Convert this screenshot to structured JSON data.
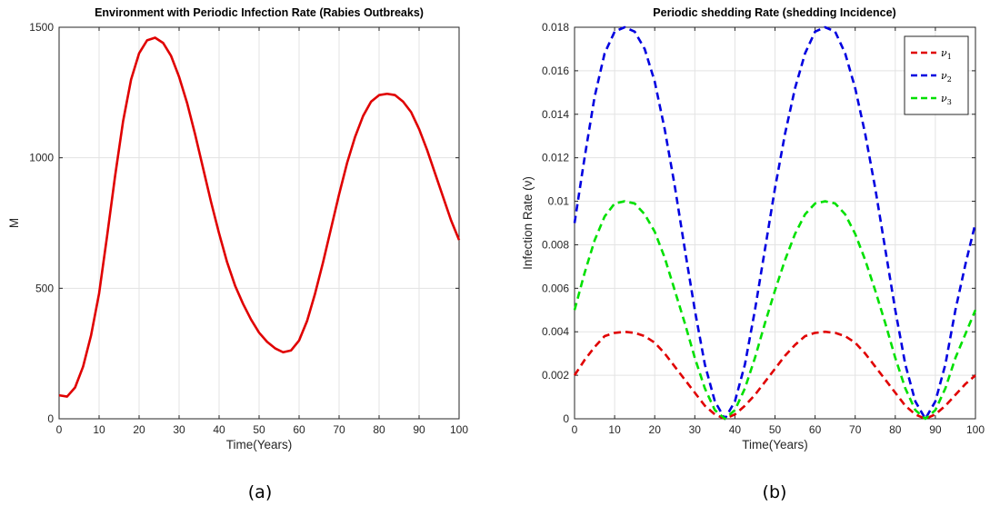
{
  "chart_data": [
    {
      "type": "line",
      "title": "Environment  with Periodic Infection Rate (Rabies Outbreaks)",
      "xlabel": "Time(Years)",
      "ylabel": "M",
      "caption": "(a)",
      "xlim": [
        0,
        100
      ],
      "ylim": [
        0,
        1500
      ],
      "xticks": [
        "0",
        "10",
        "20",
        "30",
        "40",
        "50",
        "60",
        "70",
        "80",
        "90",
        "100"
      ],
      "yticks": [
        "0",
        "500",
        "1000",
        "1500"
      ],
      "grid": true,
      "series": [
        {
          "color": "#e00000",
          "style": "solid",
          "x": [
            0,
            2,
            4,
            6,
            8,
            10,
            12,
            14,
            16,
            18,
            20,
            22,
            24,
            26,
            28,
            30,
            32,
            34,
            36,
            38,
            40,
            42,
            44,
            46,
            48,
            50,
            52,
            54,
            56,
            58,
            60,
            62,
            64,
            66,
            68,
            70,
            72,
            74,
            76,
            78,
            80,
            82,
            84,
            86,
            88,
            90,
            92,
            94,
            96,
            98,
            100
          ],
          "values": [
            90,
            85,
            120,
            200,
            320,
            480,
            700,
            930,
            1140,
            1300,
            1400,
            1450,
            1460,
            1440,
            1390,
            1310,
            1210,
            1090,
            960,
            830,
            710,
            600,
            510,
            440,
            380,
            330,
            295,
            270,
            255,
            262,
            300,
            375,
            480,
            600,
            730,
            860,
            980,
            1080,
            1160,
            1215,
            1240,
            1245,
            1240,
            1215,
            1175,
            1110,
            1030,
            940,
            850,
            760,
            685
          ]
        }
      ]
    },
    {
      "type": "line",
      "title": "Periodic shedding Rate (shedding Incidence)",
      "xlabel": "Time(Years)",
      "ylabel": "Infection Rate (ν)",
      "caption": "(b)",
      "xlim": [
        0,
        100
      ],
      "ylim": [
        0,
        0.018
      ],
      "xticks": [
        "0",
        "10",
        "20",
        "30",
        "40",
        "50",
        "60",
        "70",
        "80",
        "90",
        "100"
      ],
      "yticks": [
        "0",
        "0.002",
        "0.004",
        "0.006",
        "0.008",
        "0.01",
        "0.012",
        "0.014",
        "0.016",
        "0.018"
      ],
      "grid": true,
      "legend_position": "top-right",
      "series": [
        {
          "name": "ν1",
          "color": "#e00000",
          "style": "dashed",
          "x": [
            0,
            2.5,
            5,
            7.5,
            10,
            12.5,
            15,
            17.5,
            20,
            22.5,
            25,
            27.5,
            30,
            32.5,
            35,
            37.5,
            40,
            42.5,
            45,
            47.5,
            50,
            52.5,
            55,
            57.5,
            60,
            62.5,
            65,
            67.5,
            70,
            72.5,
            75,
            77.5,
            80,
            82.5,
            85,
            87.5,
            90,
            92.5,
            95,
            97.5,
            100
          ],
          "values": [
            0.002,
            0.0027,
            0.0033,
            0.0038,
            0.00395,
            0.004,
            0.00395,
            0.0038,
            0.0035,
            0.003,
            0.0024,
            0.0018,
            0.0012,
            0.0006,
            0.0002,
            0.0,
            0.0002,
            0.0006,
            0.0011,
            0.0017,
            0.0023,
            0.0029,
            0.0034,
            0.0038,
            0.00395,
            0.004,
            0.00395,
            0.0038,
            0.0035,
            0.003,
            0.0024,
            0.0018,
            0.0012,
            0.0006,
            0.0002,
            0.0,
            0.0002,
            0.0006,
            0.0011,
            0.0016,
            0.002
          ]
        },
        {
          "name": "ν2",
          "color": "#0000e0",
          "style": "dashed",
          "x": [
            0,
            2.5,
            5,
            7.5,
            10,
            12.5,
            15,
            17.5,
            20,
            22.5,
            25,
            27.5,
            30,
            32.5,
            35,
            37.5,
            40,
            42.5,
            45,
            47.5,
            50,
            52.5,
            55,
            57.5,
            60,
            62.5,
            65,
            67.5,
            70,
            72.5,
            75,
            77.5,
            80,
            82.5,
            85,
            87.5,
            90,
            92.5,
            95,
            97.5,
            100
          ],
          "values": [
            0.009,
            0.012,
            0.0148,
            0.0168,
            0.0178,
            0.018,
            0.0178,
            0.017,
            0.0155,
            0.0133,
            0.0107,
            0.0078,
            0.005,
            0.0025,
            0.0008,
            0.0,
            0.0008,
            0.0025,
            0.005,
            0.0078,
            0.0106,
            0.0131,
            0.0152,
            0.0168,
            0.0178,
            0.018,
            0.0178,
            0.0168,
            0.0152,
            0.0131,
            0.0106,
            0.0078,
            0.005,
            0.0025,
            0.0008,
            0.0,
            0.0008,
            0.0025,
            0.005,
            0.0071,
            0.009
          ]
        },
        {
          "name": "ν3",
          "color": "#00e000",
          "style": "dashed",
          "x": [
            0,
            2.5,
            5,
            7.5,
            10,
            12.5,
            15,
            17.5,
            20,
            22.5,
            25,
            27.5,
            30,
            32.5,
            35,
            37.5,
            40,
            42.5,
            45,
            47.5,
            50,
            52.5,
            55,
            57.5,
            60,
            62.5,
            65,
            67.5,
            70,
            72.5,
            75,
            77.5,
            80,
            82.5,
            85,
            87.5,
            90,
            92.5,
            95,
            97.5,
            100
          ],
          "values": [
            0.005,
            0.0067,
            0.0082,
            0.0093,
            0.0099,
            0.01,
            0.0099,
            0.0094,
            0.0086,
            0.0074,
            0.0059,
            0.0044,
            0.0028,
            0.0014,
            0.0004,
            0.0,
            0.0004,
            0.0014,
            0.0028,
            0.0044,
            0.0059,
            0.0073,
            0.0085,
            0.0094,
            0.0099,
            0.01,
            0.0099,
            0.0094,
            0.0085,
            0.0073,
            0.0059,
            0.0044,
            0.0028,
            0.0014,
            0.0004,
            0.0,
            0.0004,
            0.0014,
            0.0028,
            0.0039,
            0.005
          ]
        }
      ]
    }
  ]
}
